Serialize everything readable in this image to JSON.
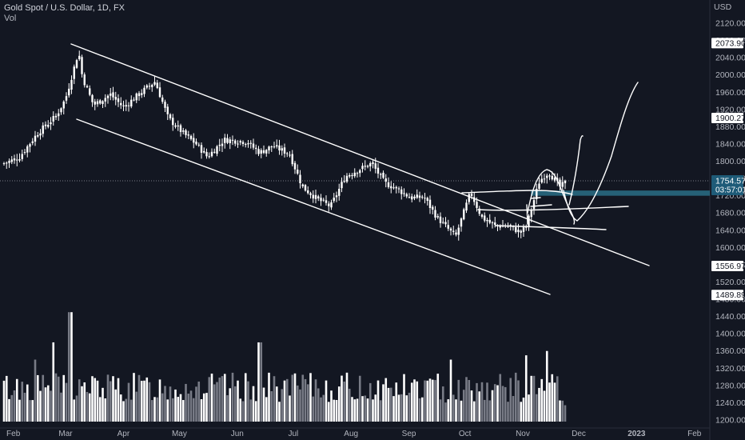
{
  "symbol_title": "Gold Spot / U.S. Dollar, 1D, FX",
  "volume_label": "Vol",
  "currency": "USD",
  "price_axis": {
    "ticks": [
      "2120.00",
      "2080.00",
      "2040.00",
      "2000.00",
      "1960.00",
      "1920.00",
      "1880.00",
      "1840.00",
      "1800.00",
      "1760.00",
      "1720.00",
      "1680.00",
      "1640.00",
      "1600.00",
      "1560.00",
      "1520.00",
      "1480.00",
      "1440.00",
      "1400.00",
      "1360.00",
      "1320.00",
      "1280.00",
      "1240.00",
      "1200.00"
    ],
    "tick_values": [
      2120,
      2080,
      2040,
      2000,
      1960,
      1920,
      1880,
      1840,
      1800,
      1760,
      1720,
      1680,
      1640,
      1600,
      1560,
      1520,
      1480,
      1440,
      1400,
      1360,
      1320,
      1280,
      1240,
      1200
    ]
  },
  "price_labels": [
    {
      "value": 2073.9,
      "text": "2073.90"
    },
    {
      "value": 1900.27,
      "text": "1900.27"
    },
    {
      "value": 1556.97,
      "text": "1556.97"
    },
    {
      "value": 1489.89,
      "text": "1489.89"
    }
  ],
  "current_price": {
    "value": 1754.57,
    "text": "1754.57",
    "countdown": "03:57:01"
  },
  "time_axis": [
    "Feb",
    "Mar",
    "Apr",
    "May",
    "Jun",
    "Jul",
    "Aug",
    "Sep",
    "Oct",
    "Nov",
    "Dec",
    "2023",
    "Feb"
  ],
  "colors": {
    "background": "#131722",
    "candle": "#ffffff",
    "drawing": "#ffffff",
    "volume_bar": "#ffffff",
    "volume_bar_down": "#787b86",
    "highlight_zone": "#2a6f86",
    "price_label_bg": "#1e5b78",
    "axis_text": "#b2b5be",
    "crosshair": "#787b86"
  },
  "chart_data": {
    "type": "candlestick",
    "title": "Gold Spot / U.S. Dollar, 1D, FX",
    "ylabel": "USD",
    "ylim": [
      1190,
      2140
    ],
    "price_path": [
      [
        "2022-01-27",
        1795
      ],
      [
        "2022-02-04",
        1808
      ],
      [
        "2022-02-14",
        1865
      ],
      [
        "2022-02-24",
        1905
      ],
      [
        "2022-03-01",
        1945
      ],
      [
        "2022-03-08",
        2055
      ],
      [
        "2022-03-10",
        1995
      ],
      [
        "2022-03-16",
        1930
      ],
      [
        "2022-03-25",
        1955
      ],
      [
        "2022-04-01",
        1925
      ],
      [
        "2022-04-12",
        1965
      ],
      [
        "2022-04-18",
        1985
      ],
      [
        "2022-04-25",
        1900
      ],
      [
        "2022-05-03",
        1865
      ],
      [
        "2022-05-10",
        1840
      ],
      [
        "2022-05-16",
        1810
      ],
      [
        "2022-05-25",
        1850
      ],
      [
        "2022-06-06",
        1845
      ],
      [
        "2022-06-13",
        1820
      ],
      [
        "2022-06-20",
        1835
      ],
      [
        "2022-06-29",
        1817
      ],
      [
        "2022-07-06",
        1740
      ],
      [
        "2022-07-14",
        1712
      ],
      [
        "2022-07-21",
        1695
      ],
      [
        "2022-07-29",
        1765
      ],
      [
        "2022-08-05",
        1780
      ],
      [
        "2022-08-12",
        1795
      ],
      [
        "2022-08-19",
        1750
      ],
      [
        "2022-08-26",
        1735
      ],
      [
        "2022-09-02",
        1715
      ],
      [
        "2022-09-09",
        1717
      ],
      [
        "2022-09-16",
        1670
      ],
      [
        "2022-09-26",
        1625
      ],
      [
        "2022-10-04",
        1728
      ],
      [
        "2022-10-10",
        1670
      ],
      [
        "2022-10-17",
        1650
      ],
      [
        "2022-10-24",
        1650
      ],
      [
        "2022-10-31",
        1635
      ],
      [
        "2022-11-03",
        1650
      ],
      [
        "2022-11-10",
        1755
      ],
      [
        "2022-11-15",
        1775
      ],
      [
        "2022-11-21",
        1740
      ],
      [
        "2022-11-25",
        1754.57
      ]
    ],
    "volume_axis_labels_shared": true
  }
}
